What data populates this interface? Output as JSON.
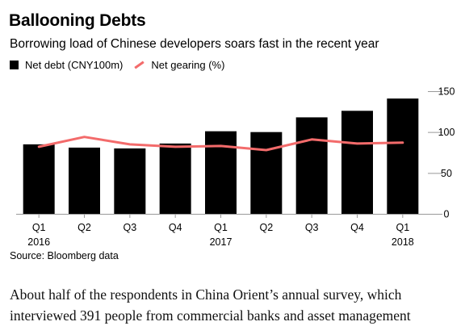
{
  "title": "Ballooning Debts",
  "subtitle": "Borrowing load of Chinese developers soars fast in the recent year",
  "legend": {
    "bars": "Net debt (CNY100m)",
    "line": "Net gearing (%)"
  },
  "source": "Source: Bloomberg data",
  "article": {
    "line1": "About half of the respondents in China Orient’s annual survey, which",
    "line2": "interviewed 391 people from commercial banks and asset management"
  },
  "colors": {
    "bar": "#000000",
    "line": "#f36b6b",
    "axis": "#999999"
  },
  "chart_data": {
    "type": "bar",
    "categories": [
      "Q1 2016",
      "Q2",
      "Q3",
      "Q4",
      "Q1 2017",
      "Q2",
      "Q3",
      "Q4",
      "Q1 2018"
    ],
    "x_tick_labels": [
      {
        "top": "Q1",
        "bottom": "2016"
      },
      {
        "top": "Q2",
        "bottom": ""
      },
      {
        "top": "Q3",
        "bottom": ""
      },
      {
        "top": "Q4",
        "bottom": ""
      },
      {
        "top": "Q1",
        "bottom": "2017"
      },
      {
        "top": "Q2",
        "bottom": ""
      },
      {
        "top": "Q3",
        "bottom": ""
      },
      {
        "top": "Q4",
        "bottom": ""
      },
      {
        "top": "Q1",
        "bottom": "2018"
      }
    ],
    "series": [
      {
        "name": "Net debt (CNY100m)",
        "kind": "bar",
        "values": [
          85,
          81,
          80,
          86,
          101,
          100,
          118,
          126,
          141
        ]
      },
      {
        "name": "Net gearing (%)",
        "kind": "line",
        "values": [
          82,
          94,
          85,
          82,
          83,
          78,
          91,
          86,
          87
        ]
      }
    ],
    "ylim": [
      0,
      150
    ],
    "yticks": [
      0,
      50,
      100,
      150
    ],
    "y_axis_position": "right",
    "grid": false
  }
}
